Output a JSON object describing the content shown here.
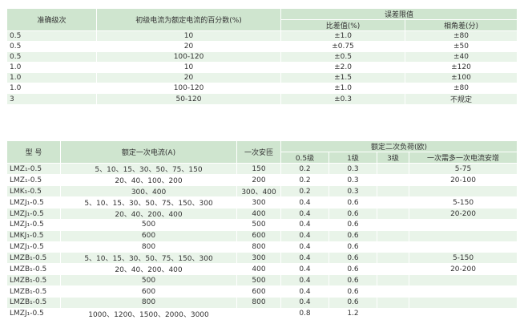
{
  "table1": {
    "header": {
      "grade": "准确级次",
      "percent": "初级电流为额定电流的百分数(%)",
      "limit": "误差限值",
      "ratio": "比差值(%)",
      "angle": "相角差(分)"
    },
    "rows": [
      [
        "0.5",
        "10",
        "±1.0",
        "±80"
      ],
      [
        "0.5",
        "20",
        "±0.75",
        "±50"
      ],
      [
        "0.5",
        "100-120",
        "±0.5",
        "±40"
      ],
      [
        "1.0",
        "10",
        "±2.0",
        "±120"
      ],
      [
        "1.0",
        "20",
        "±1.5",
        "±100"
      ],
      [
        "1.0",
        "100-120",
        "±1.0",
        "±80"
      ],
      [
        "3",
        "50-120",
        "±0.3",
        "不规定"
      ]
    ]
  },
  "table2": {
    "header": {
      "model": "型 号",
      "current": "额定一次电流(A)",
      "ampturns": "一次安匝",
      "load": "额定二次负荷(欧)",
      "c05": "0.5级",
      "c1": "1级",
      "c3": "3级",
      "extra": "一次需多一次电流安增"
    },
    "rows": [
      [
        "LMZ₁-0.5",
        "5、10、15、30、50、75、150",
        "150",
        "0.2",
        "0.3",
        null,
        "5-75"
      ],
      [
        "LMZ₁-0.5",
        "20、40、100、200",
        "200",
        "0.2",
        "0.3",
        null,
        "20-100"
      ],
      [
        "LMK₁-0.5",
        "300、400",
        "300、400",
        "0.2",
        "0.3",
        null,
        null
      ],
      [
        "LMZJ₁-0.5",
        "5、10、15、30、50、75、150、300",
        "300",
        "0.4",
        "0.6",
        null,
        "5-150"
      ],
      [
        "LMZJ₁-0.5",
        "20、40、200、400",
        "400",
        "0.4",
        "0.6",
        null,
        "20-200"
      ],
      [
        "LMZJ₁-0.5",
        "500",
        "500",
        "0.4",
        "0.6",
        null,
        null
      ],
      [
        "LMKJ₁-0.5",
        "600",
        "600",
        "0.4",
        "0.6",
        null,
        null
      ],
      [
        "LMZJ₁-0.5",
        "800",
        "800",
        "0.4",
        "0.6",
        null,
        null
      ],
      [
        "LMZB₁-0.5",
        "5、10、15、30、50、75、150、300",
        "300",
        "0.4",
        "0.6",
        null,
        "5-150"
      ],
      [
        "LMZB₁-0.5",
        "20、40、200、400",
        "400",
        "0.4",
        "0.6",
        null,
        "20-200"
      ],
      [
        "LMZB₁-0.5",
        "500",
        "500",
        "0.4",
        "0.6",
        null,
        null
      ],
      [
        "LMZB₁-0.5",
        "600",
        "600",
        "0.4",
        "0.6",
        null,
        null
      ],
      [
        "LMZB₁-0.5",
        "800",
        "800",
        "0.4",
        "0.6",
        null,
        null
      ],
      [
        "LMZJ₁-0.5",
        "1000、1200、1500、2000、3000",
        null,
        "0.8",
        "1.2",
        null,
        null
      ]
    ]
  }
}
